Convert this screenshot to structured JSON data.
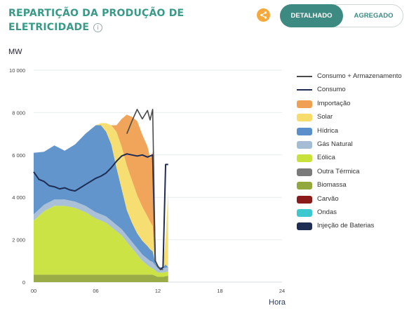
{
  "header": {
    "title_line1": "REPARTIÇÃO DA PRODUÇÃO DE",
    "title_line2": "ELETRICIDADE",
    "info_icon": "info-icon",
    "share_icon": "share-icon",
    "detailed_label": "DETALHADO",
    "aggregated_label": "AGREGADO"
  },
  "colors": {
    "hidrica": "#5a8fc9",
    "gas": "#a4bdd4",
    "eolica": "#c9e23b",
    "biomassa": "#93a83c",
    "solar": "#f7dc6b",
    "importacao": "#f0a052",
    "consumo": "#1e2d54",
    "consumo_arm": "#4a4a4a"
  },
  "chart_data": {
    "type": "area",
    "xlabel": "Hora",
    "ylabel": "MW",
    "ylim": [
      0,
      10000
    ],
    "xlim": [
      0,
      24
    ],
    "y_ticks": [
      0,
      2000,
      4000,
      6000,
      8000,
      10000
    ],
    "y_tick_labels": [
      "0",
      "2 000",
      "4 000",
      "6 000",
      "8 000",
      "10 000"
    ],
    "x_ticks": [
      0,
      6,
      12,
      18,
      24
    ],
    "x_tick_labels": [
      "00",
      "06",
      "12",
      "18",
      "24"
    ],
    "legend": [
      {
        "label": "Consumo + Armazenamento",
        "kind": "line",
        "color": "#4a4a4a"
      },
      {
        "label": "Consumo",
        "kind": "line",
        "color": "#1e2d54"
      },
      {
        "label": "Importação",
        "kind": "box",
        "color": "#f0a052"
      },
      {
        "label": "Solar",
        "kind": "box",
        "color": "#f7dc6b"
      },
      {
        "label": "Hídrica",
        "kind": "box",
        "color": "#5a8fc9"
      },
      {
        "label": "Gás Natural",
        "kind": "box",
        "color": "#a4bdd4"
      },
      {
        "label": "Eólica",
        "kind": "box",
        "color": "#c9e23b"
      },
      {
        "label": "Outra Térmica",
        "kind": "box",
        "color": "#7a7a7a"
      },
      {
        "label": "Biomassa",
        "kind": "box",
        "color": "#93a83c"
      },
      {
        "label": "Carvão",
        "kind": "box",
        "color": "#8b1a1a"
      },
      {
        "label": "Ondas",
        "kind": "box",
        "color": "#3cc8cf"
      },
      {
        "label": "Injeção de Baterias",
        "kind": "box",
        "color": "#1e2d54"
      }
    ],
    "x": [
      0,
      1,
      2,
      3,
      4,
      5,
      6,
      6.5,
      7,
      7.5,
      8,
      8.5,
      9,
      9.5,
      10,
      10.5,
      11,
      11.25,
      11.5,
      11.75,
      12,
      12.25,
      12.5,
      12.75,
      13
    ],
    "series": [
      {
        "name": "Biomassa",
        "color": "#93a83c",
        "values": [
          350,
          350,
          350,
          350,
          350,
          350,
          350,
          350,
          350,
          350,
          350,
          350,
          350,
          350,
          350,
          350,
          350,
          350,
          350,
          300,
          250,
          250,
          250,
          280,
          300
        ]
      },
      {
        "name": "Eólica",
        "color": "#c9e23b",
        "values": [
          2550,
          3000,
          3250,
          3250,
          3150,
          2950,
          2650,
          2550,
          2450,
          2250,
          2050,
          1850,
          1550,
          1250,
          950,
          650,
          450,
          350,
          300,
          250,
          200,
          200,
          200,
          200,
          200
        ]
      },
      {
        "name": "Gás Natural",
        "color": "#a4bdd4",
        "values": [
          300,
          300,
          300,
          300,
          300,
          300,
          300,
          300,
          300,
          300,
          300,
          300,
          300,
          300,
          300,
          300,
          300,
          300,
          300,
          250,
          200,
          200,
          200,
          200,
          200
        ]
      },
      {
        "name": "Hídrica",
        "color": "#5a8fc9",
        "values": [
          2900,
          2500,
          2550,
          2300,
          2700,
          3400,
          4100,
          4200,
          4000,
          3600,
          2700,
          1900,
          1200,
          900,
          700,
          650,
          600,
          550,
          500,
          100,
          50,
          50,
          50,
          150,
          0
        ]
      },
      {
        "name": "Solar",
        "color": "#f7dc6b",
        "values": [
          0,
          0,
          0,
          0,
          0,
          0,
          0,
          100,
          400,
          900,
          1700,
          2000,
          2100,
          2000,
          1800,
          1600,
          1400,
          1300,
          1200,
          0,
          0,
          0,
          0,
          1200,
          3600
        ]
      },
      {
        "name": "Importação",
        "color": "#f0a052",
        "values": [
          0,
          0,
          0,
          0,
          0,
          0,
          0,
          0,
          0,
          0,
          300,
          1300,
          2400,
          3000,
          3500,
          3400,
          3300,
          3000,
          3500,
          0,
          0,
          0,
          0,
          0,
          0
        ]
      }
    ],
    "lines": [
      {
        "name": "Consumo",
        "color": "#1e2d54",
        "x": [
          0,
          0.5,
          1,
          1.5,
          2,
          2.5,
          3,
          3.5,
          4,
          4.5,
          5,
          5.5,
          6,
          6.5,
          7,
          7.5,
          8,
          8.5,
          9,
          9.5,
          10,
          10.5,
          11,
          11.5,
          11.75,
          12,
          12.25,
          12.5,
          12.75,
          13
        ],
        "values": [
          5200,
          4850,
          4750,
          4550,
          4500,
          4400,
          4450,
          4350,
          4300,
          4450,
          4600,
          4750,
          4900,
          5000,
          5150,
          5400,
          5700,
          5950,
          6050,
          6000,
          5950,
          6000,
          5900,
          6000,
          1000,
          750,
          600,
          700,
          5550,
          5550
        ]
      },
      {
        "name": "Consumo + Armazenamento",
        "color": "#4a4a4a",
        "x": [
          9,
          9.5,
          10,
          10.5,
          11,
          11.25,
          11.5,
          11.75,
          12,
          12.25,
          12.5
        ],
        "values": [
          7000,
          7600,
          8150,
          7700,
          8100,
          7650,
          8150,
          1000,
          750,
          600,
          600
        ]
      }
    ]
  }
}
